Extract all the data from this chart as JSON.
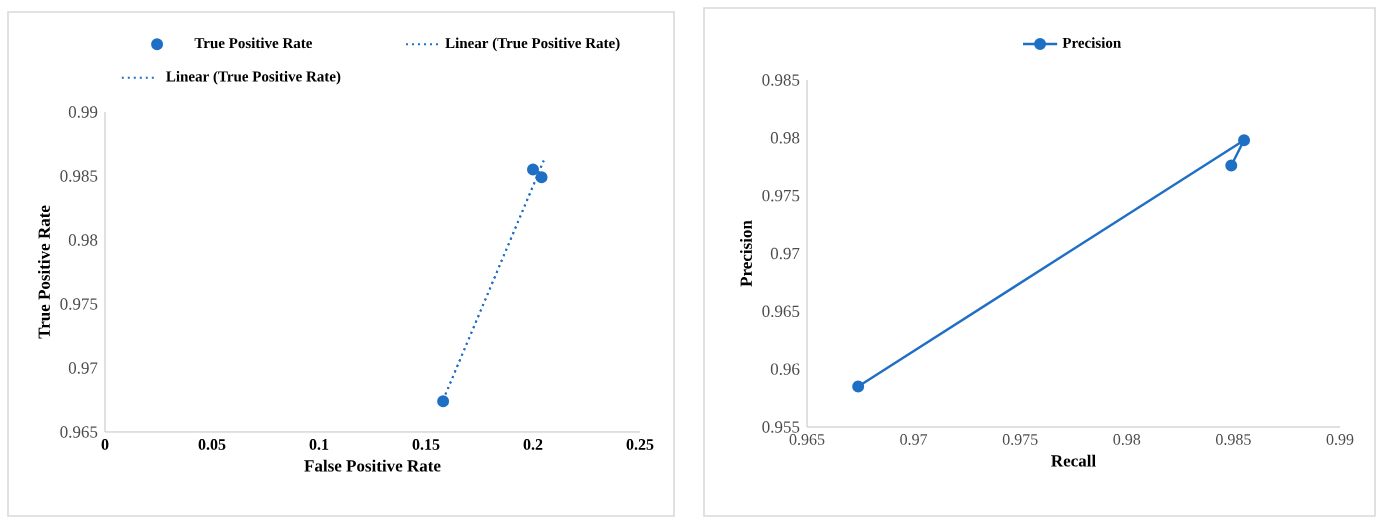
{
  "chart_data": [
    {
      "type": "scatter",
      "xlabel": "False Positive Rate",
      "ylabel": "True  Positive Rate",
      "xlim": [
        0,
        0.25
      ],
      "ylim": [
        0.965,
        0.99
      ],
      "xticks": [
        0,
        0.05,
        0.1,
        0.15,
        0.2,
        0.25
      ],
      "yticks": [
        0.965,
        0.97,
        0.975,
        0.98,
        0.985,
        0.99
      ],
      "legend": "top",
      "marker": "circle",
      "series": [
        {
          "name": "True Positive Rate",
          "color": "#1f6fc4",
          "x": [
            0.158,
            0.2,
            0.204
          ],
          "values": [
            0.9674,
            0.9855,
            0.9849
          ]
        },
        {
          "name": "Linear (True Positive Rate)",
          "type": "line",
          "line_style": "dotted",
          "marker": "none",
          "color": "#1f6fc4",
          "x": [
            0.158,
            0.205
          ],
          "values": [
            0.9675,
            0.9862
          ]
        },
        {
          "name": "Linear (True Positive Rate)",
          "type": "line",
          "line_style": "dotted",
          "marker": "none",
          "color": "#1f6fc4",
          "x": [
            0.158,
            0.205
          ],
          "values": [
            0.9675,
            0.9862
          ]
        }
      ]
    },
    {
      "type": "line",
      "xlabel": "Recall",
      "ylabel": "Precision",
      "xlim": [
        0.965,
        0.99
      ],
      "ylim": [
        0.955,
        0.985
      ],
      "xticks": [
        0.965,
        0.97,
        0.975,
        0.98,
        0.985,
        0.99
      ],
      "yticks": [
        0.955,
        0.96,
        0.965,
        0.97,
        0.975,
        0.98,
        0.985
      ],
      "legend": "top",
      "marker": "circle",
      "line_style": "solid",
      "series": [
        {
          "name": "Precision",
          "color": "#1f6fc4",
          "x": [
            0.9674,
            0.9855,
            0.9849
          ],
          "values": [
            0.9585,
            0.9798,
            0.9776
          ]
        }
      ]
    }
  ]
}
